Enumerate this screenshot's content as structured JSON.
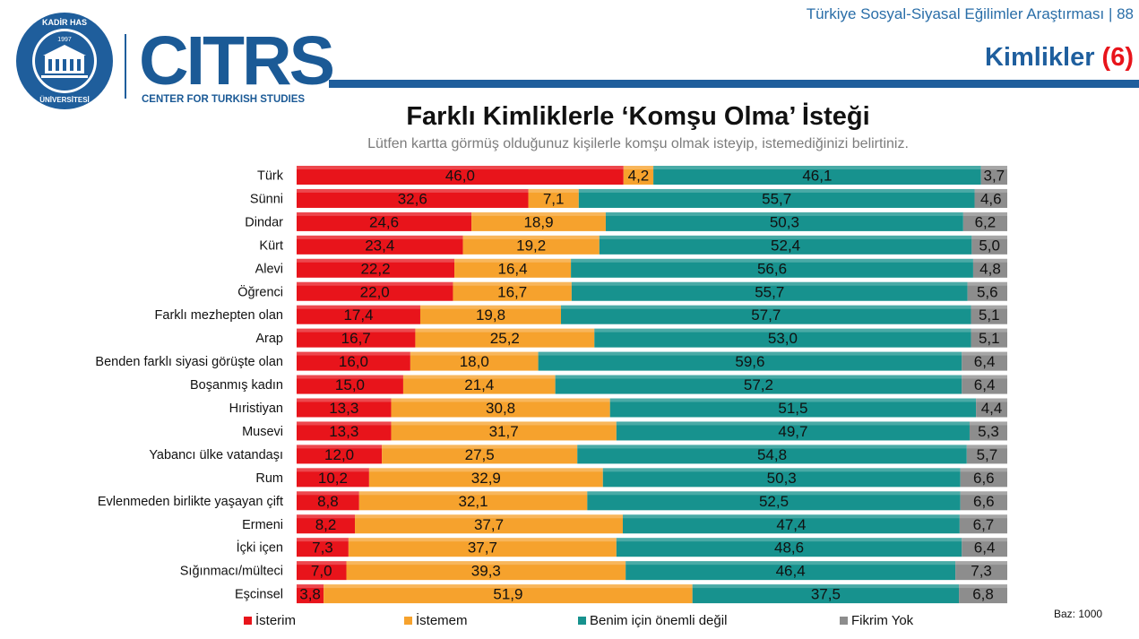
{
  "header": {
    "report_title": "Türkiye Sosyal-Siyasal Eğilimler Araştırması | 88",
    "section_title": "Kimlikler",
    "section_number": "(6)"
  },
  "logos": {
    "university_seal_text": "KADİR HAS ÜNİVERSİTESİ 1997",
    "brand_letters": "CITRS",
    "brand_subtitle": "CENTER FOR TURKISH STUDIES"
  },
  "colors": {
    "brand_blue": "#1f5e9c",
    "accent_red": "#e8141b"
  },
  "chart_data": {
    "type": "bar",
    "stacked": true,
    "orientation": "horizontal",
    "title": "Farklı Kimliklerle ‘Komşu Olma’ İsteği",
    "subtitle": "Lütfen kartta görmüş olduğunuz kişilerle komşu olmak isteyip, istemediğinizi belirtiniz.",
    "xlim": [
      0,
      100
    ],
    "grid": false,
    "legend_position": "bottom",
    "categories": [
      "Türk",
      "Sünni",
      "Dindar",
      "Kürt",
      "Alevi",
      "Öğrenci",
      "Farklı mezhepten olan",
      "Arap",
      "Benden farklı siyasi görüşte olan",
      "Boşanmış kadın",
      "Hıristiyan",
      "Musevi",
      "Yabancı ülke vatandaşı",
      "Rum",
      "Evlenmeden birlikte yaşayan çift",
      "Ermeni",
      "İçki içen",
      "Sığınmacı/mülteci",
      "Eşcinsel"
    ],
    "series": [
      {
        "name": "İsterim",
        "color": "#e8141b",
        "values": [
          46.0,
          32.6,
          24.6,
          23.4,
          22.2,
          22.0,
          17.4,
          16.7,
          16.0,
          15.0,
          13.3,
          13.3,
          12.0,
          10.2,
          8.8,
          8.2,
          7.3,
          7.0,
          3.8
        ],
        "labels": [
          "46,0",
          "32,6",
          "24,6",
          "23,4",
          "22,2",
          "22,0",
          "17,4",
          "16,7",
          "16,0",
          "15,0",
          "13,3",
          "13,3",
          "12,0",
          "10,2",
          "8,8",
          "8,2",
          "7,3",
          "7,0",
          "3,8"
        ]
      },
      {
        "name": "İstemem",
        "color": "#f6a22d",
        "values": [
          4.2,
          7.1,
          18.9,
          19.2,
          16.4,
          16.7,
          19.8,
          25.2,
          18.0,
          21.4,
          30.8,
          31.7,
          27.5,
          32.9,
          32.1,
          37.7,
          37.7,
          39.3,
          51.9
        ],
        "labels": [
          "4,2",
          "7,1",
          "18,9",
          "19,2",
          "16,4",
          "16,7",
          "19,8",
          "25,2",
          "18,0",
          "21,4",
          "30,8",
          "31,7",
          "27,5",
          "32,9",
          "32,1",
          "37,7",
          "37,7",
          "39,3",
          "51,9"
        ]
      },
      {
        "name": "Benim için önemli değil",
        "color": "#17928e",
        "values": [
          46.1,
          55.7,
          50.3,
          52.4,
          56.6,
          55.7,
          57.7,
          53.0,
          59.6,
          57.2,
          51.5,
          49.7,
          54.8,
          50.3,
          52.5,
          47.4,
          48.6,
          46.4,
          37.5
        ],
        "labels": [
          "46,1",
          "55,7",
          "50,3",
          "52,4",
          "56,6",
          "55,7",
          "57,7",
          "53,0",
          "59,6",
          "57,2",
          "51,5",
          "49,7",
          "54,8",
          "50,3",
          "52,5",
          "47,4",
          "48,6",
          "46,4",
          "37,5"
        ]
      },
      {
        "name": "Fikrim Yok",
        "color": "#8d8d8d",
        "values": [
          3.7,
          4.6,
          6.2,
          5.0,
          4.8,
          5.6,
          5.1,
          5.1,
          6.4,
          6.4,
          4.4,
          5.3,
          5.7,
          6.6,
          6.6,
          6.7,
          6.4,
          7.3,
          6.8
        ],
        "labels": [
          "3,7",
          "4,6",
          "6,2",
          "5,0",
          "4,8",
          "5,6",
          "5,1",
          "5,1",
          "6,4",
          "6,4",
          "4,4",
          "5,3",
          "5,7",
          "6,6",
          "6,6",
          "6,7",
          "6,4",
          "7,3",
          "6,8"
        ]
      }
    ],
    "note": "Baz: 1000"
  }
}
